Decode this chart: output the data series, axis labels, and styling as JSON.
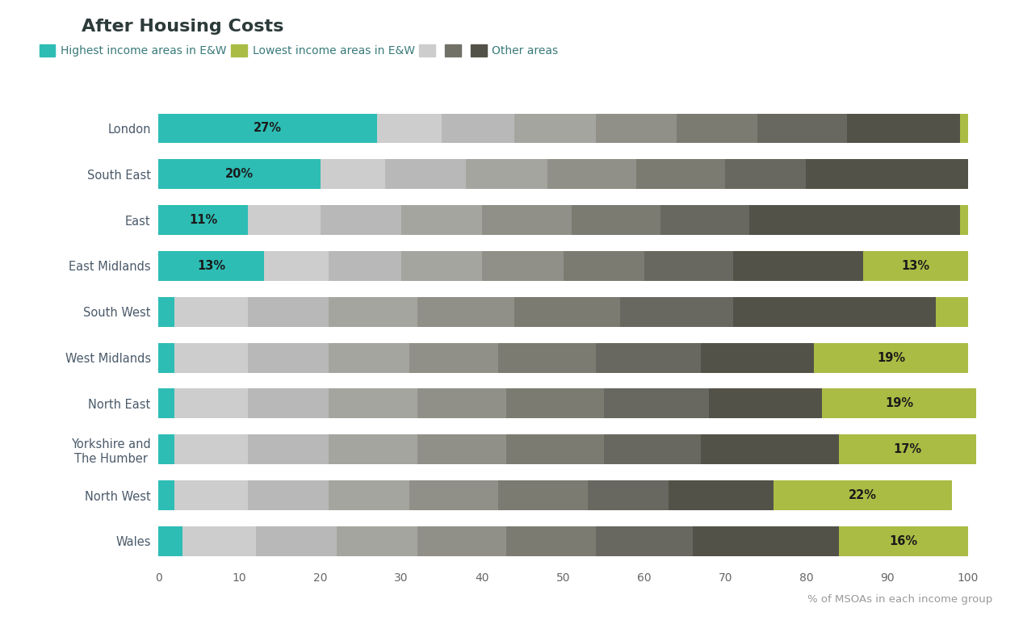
{
  "title": "After Housing Costs",
  "xlabel": "% of MSOAs in each income group",
  "regions": [
    "Wales",
    "North West",
    "Yorkshire and\nThe Humber",
    "North East",
    "West Midlands",
    "South West",
    "East Midlands",
    "East",
    "South East",
    "London"
  ],
  "highest_color": "#2DBDB5",
  "lowest_color": "#AABC44",
  "other_colors": [
    "#CDCDCD",
    "#B8B8B8",
    "#A5A5A0",
    "#909088",
    "#7B7B72",
    "#686860",
    "#525248"
  ],
  "highest_values": [
    3,
    2,
    2,
    2,
    2,
    2,
    13,
    11,
    20,
    27
  ],
  "lowest_values": [
    16,
    22,
    17,
    19,
    19,
    4,
    13,
    1,
    0,
    1
  ],
  "other_segments": [
    [
      9,
      10,
      10,
      11,
      11,
      12,
      18
    ],
    [
      9,
      10,
      10,
      11,
      11,
      10,
      13
    ],
    [
      9,
      10,
      11,
      11,
      12,
      12,
      17
    ],
    [
      9,
      10,
      11,
      11,
      12,
      13,
      14
    ],
    [
      9,
      10,
      10,
      11,
      12,
      13,
      14
    ],
    [
      9,
      10,
      11,
      12,
      13,
      14,
      25
    ],
    [
      8,
      9,
      10,
      10,
      10,
      11,
      16
    ],
    [
      9,
      10,
      10,
      11,
      11,
      11,
      26
    ],
    [
      8,
      10,
      10,
      11,
      11,
      10,
      20
    ],
    [
      8,
      9,
      10,
      10,
      10,
      11,
      14
    ]
  ],
  "highest_labels": [
    "",
    "",
    "",
    "",
    "",
    "",
    "13%",
    "11%",
    "20%",
    "27%"
  ],
  "lowest_labels": [
    "16%",
    "22%",
    "17%",
    "19%",
    "19%",
    "",
    "13%",
    "",
    "",
    ""
  ],
  "background_color": "#ffffff",
  "title_color": "#2d3a3a",
  "label_color": "#4a5a6a",
  "tick_color": "#666666",
  "legend_text_color": "#3a7a7a",
  "other_legend_colors": [
    "#CDCDCD",
    "#717168",
    "#525248"
  ]
}
